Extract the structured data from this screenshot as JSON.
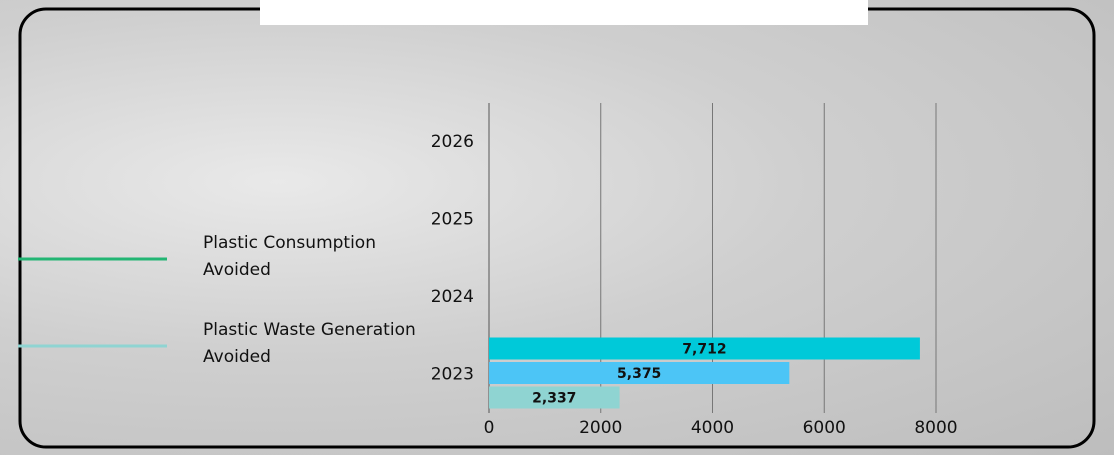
{
  "chart_data": {
    "type": "hbar",
    "categories": [
      "2023",
      "2024",
      "2025",
      "2026"
    ],
    "series": [
      {
        "name": "Plastic Consumption Avoided",
        "color": "#00c9d9",
        "legend_color": "#22b573",
        "values": [
          7712,
          null,
          null,
          null
        ],
        "value_labels": [
          "7,712",
          null,
          null,
          null
        ]
      },
      {
        "color": "#4cc5f6",
        "values": [
          5375,
          null,
          null,
          null
        ],
        "value_labels": [
          "5,375",
          null,
          null,
          null
        ]
      },
      {
        "name": "Plastic Waste Generation Avoided",
        "color": "#8fd4d2",
        "legend_color": "#8fd4d2",
        "values": [
          2337,
          null,
          null,
          null
        ],
        "value_labels": [
          "2,337",
          null,
          null,
          null
        ]
      }
    ],
    "xlim": [
      0,
      8000
    ],
    "xticks": [
      0,
      2000,
      4000,
      6000,
      8000
    ],
    "grid": true
  }
}
